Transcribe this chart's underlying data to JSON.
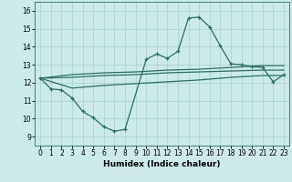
{
  "xlabel": "Humidex (Indice chaleur)",
  "bg_color": "#cceaea",
  "line_color": "#2a7060",
  "grid_color": "#aacece",
  "xlim": [
    -0.5,
    23.5
  ],
  "ylim": [
    8.5,
    16.5
  ],
  "xticks": [
    0,
    1,
    2,
    3,
    4,
    5,
    6,
    7,
    8,
    9,
    10,
    11,
    12,
    13,
    14,
    15,
    16,
    17,
    18,
    19,
    20,
    21,
    22,
    23
  ],
  "yticks": [
    9,
    10,
    11,
    12,
    13,
    14,
    15,
    16
  ],
  "main_x": [
    0,
    1,
    2,
    3,
    4,
    5,
    6,
    7,
    8,
    10,
    11,
    12,
    13,
    14,
    15,
    16,
    17,
    18,
    19,
    20,
    21,
    22,
    23
  ],
  "main_y": [
    12.25,
    11.65,
    11.6,
    11.15,
    10.4,
    10.05,
    9.55,
    9.3,
    9.4,
    13.3,
    13.6,
    13.35,
    13.75,
    15.6,
    15.65,
    15.1,
    14.05,
    13.05,
    13.0,
    12.9,
    12.85,
    12.05,
    12.45
  ],
  "upper_x": [
    0,
    3,
    6,
    9,
    12,
    15,
    18,
    21,
    23
  ],
  "upper_y": [
    12.25,
    12.45,
    12.55,
    12.6,
    12.7,
    12.75,
    12.85,
    12.95,
    12.95
  ],
  "mid_x": [
    0,
    3,
    6,
    9,
    12,
    15,
    18,
    21,
    23
  ],
  "mid_y": [
    12.25,
    12.3,
    12.4,
    12.45,
    12.55,
    12.6,
    12.65,
    12.7,
    12.7
  ],
  "lower_x": [
    0,
    3,
    6,
    9,
    12,
    15,
    18,
    21,
    23
  ],
  "lower_y": [
    12.25,
    11.7,
    11.85,
    11.95,
    12.05,
    12.15,
    12.3,
    12.4,
    12.4
  ]
}
